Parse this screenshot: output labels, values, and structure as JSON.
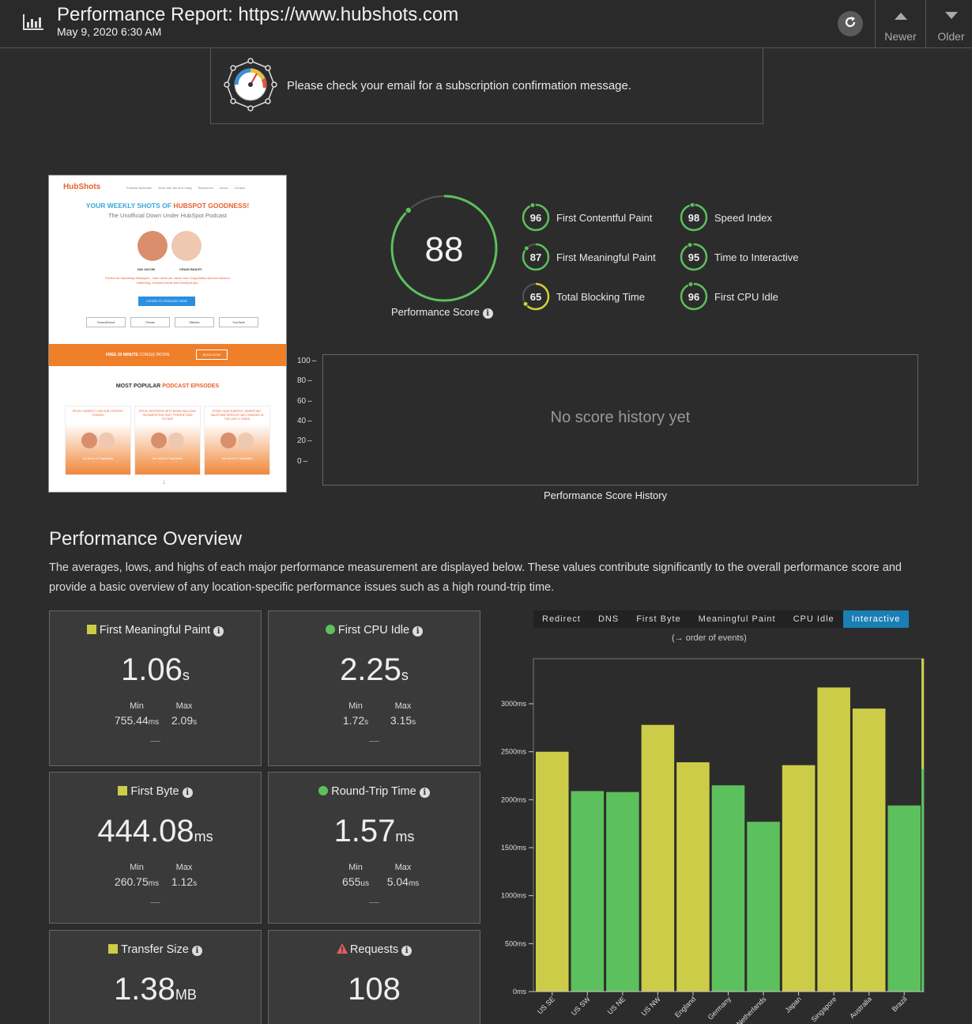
{
  "header": {
    "title": "Performance Report: https://www.hubshots.com",
    "date": "May 9, 2020 6:30 AM",
    "newer_label": "Newer",
    "older_label": "Older"
  },
  "notice": {
    "message": "Please check your email for a subscription confirmation message."
  },
  "thumbnail": {
    "logo": "HubShots",
    "nav": [
      "Podcast Episodes",
      "Work with Ian and Craig",
      "Resources",
      "About",
      "Contact"
    ],
    "headline_a": "YOUR WEEKLY SHOTS OF ",
    "headline_b": "HUBSPOT GOODNESS!",
    "subhead": "The Unofficial Down Under HubSpot Podcast",
    "host1": "IAN JACOB",
    "host2": "CRAIG BAILEY",
    "blurb": "Perfect for Marketing Managers - each week Ian Jacob and Craig Bailey discuss inbound marketing, industry trends and HubSpot tips.",
    "cta": "LISTEN TO PODCAST NOW",
    "platforms": [
      "SoundCloud",
      "iTunes",
      "Stitcher",
      "YouTube"
    ],
    "banner_a": "FREE 30 MINUTE ",
    "banner_b": "CONSULTATION",
    "banner_btn": "BOOK NOW",
    "popular_a": "MOST POPULAR ",
    "popular_b": "PODCAST EPISODES",
    "episodes": [
      {
        "title": "EP193: HUBSPOT CMS HUB CONTENT STAGING",
        "hosts": "Ian Jacob & Craig Bailey"
      },
      {
        "title": "EP193: INTERVIEW WITH BRIAN HALLIGAN ON MARKETING PAST, PRESENT AND FUTURE",
        "hosts": "Ian Jacob & Craig Bailey"
      },
      {
        "title": "EP205: HOW HUBSPOT, MARKETING, SALES AND SERVICE HAS CHANGED IN THE LAST 4 YEARS",
        "hosts": "Ian Jacob & Craig Bailey"
      }
    ]
  },
  "score": {
    "value": "88",
    "fraction": 0.88,
    "label": "Performance Score",
    "color": "#5cc05c"
  },
  "metrics": [
    {
      "value": "96",
      "fraction": 0.96,
      "label": "First Contentful Paint",
      "color": "#5cc05c"
    },
    {
      "value": "98",
      "fraction": 0.98,
      "label": "Speed Index",
      "color": "#5cc05c"
    },
    {
      "value": "87",
      "fraction": 0.87,
      "label": "First Meaningful Paint",
      "color": "#5cc05c"
    },
    {
      "value": "95",
      "fraction": 0.95,
      "label": "Time to Interactive",
      "color": "#5cc05c"
    },
    {
      "value": "65",
      "fraction": 0.65,
      "label": "Total Blocking Time",
      "color": "#d4cf3a"
    },
    {
      "value": "96",
      "fraction": 0.96,
      "label": "First CPU Idle",
      "color": "#5cc05c"
    }
  ],
  "history": {
    "empty_text": "No score history yet",
    "caption": "Performance Score History",
    "ticks": [
      "100",
      "80",
      "60",
      "40",
      "20",
      "0"
    ]
  },
  "overview": {
    "title": "Performance Overview",
    "description": "The averages, lows, and highs of each major performance measurement are displayed below. These values contribute significantly to the overall performance score and provide a basic overview of any location-specific performance issues such as a high round-trip time.",
    "min_label": "Min",
    "max_label": "Max",
    "cards": [
      {
        "title": "First Meaningful Paint",
        "status": "yellow-square",
        "value": "1.06",
        "unit": "s",
        "min": "755.44",
        "min_unit": "ms",
        "max": "2.09",
        "max_unit": "s"
      },
      {
        "title": "First CPU Idle",
        "status": "green-circle",
        "value": "2.25",
        "unit": "s",
        "min": "1.72",
        "min_unit": "s",
        "max": "3.15",
        "max_unit": "s"
      },
      {
        "title": "First Byte",
        "status": "yellow-square",
        "value": "444.08",
        "unit": "ms",
        "min": "260.75",
        "min_unit": "ms",
        "max": "1.12",
        "max_unit": "s"
      },
      {
        "title": "Round-Trip Time",
        "status": "green-circle",
        "value": "1.57",
        "unit": "ms",
        "min": "655",
        "min_unit": "us",
        "max": "5.04",
        "max_unit": "ms"
      },
      {
        "title": "Transfer Size",
        "status": "yellow-square",
        "value": "1.38",
        "unit": "MB"
      },
      {
        "title": "Requests",
        "status": "warning-triangle",
        "value": "108",
        "unit": ""
      }
    ]
  },
  "tabs": [
    "Redirect",
    "DNS",
    "First Byte",
    "Meaningful Paint",
    "CPU Idle",
    "Interactive"
  ],
  "active_tab": "Interactive",
  "order_note": "(→ order of events)",
  "colors": {
    "green": "#5cc05c",
    "yellow": "#cccc48",
    "accent": "#1a7fb5",
    "warning": "#e06060"
  },
  "chart_data": {
    "type": "bar",
    "categories": [
      "US SE",
      "US SW",
      "US NE",
      "US NW",
      "England",
      "Germany",
      "Netherlands",
      "Japan",
      "Singapore",
      "Australia",
      "Brazil"
    ],
    "values": [
      2500,
      2090,
      2080,
      2780,
      2390,
      2150,
      1770,
      2360,
      3170,
      2950,
      1940
    ],
    "bar_colors": [
      "yellow",
      "green",
      "green",
      "yellow",
      "yellow",
      "green",
      "green",
      "yellow",
      "yellow",
      "yellow",
      "green"
    ],
    "yticks": [
      0,
      500,
      1000,
      1500,
      2000,
      2500,
      3000
    ],
    "ytick_labels": [
      "0ms",
      "500ms",
      "1000ms",
      "1500ms",
      "2000ms",
      "2500ms",
      "3000ms"
    ],
    "ylim": [
      0,
      3470
    ],
    "threshold_marks": [
      {
        "from": 0,
        "to": 2320,
        "color": "green"
      },
      {
        "from": 2320,
        "to": 3470,
        "color": "yellow"
      }
    ]
  }
}
